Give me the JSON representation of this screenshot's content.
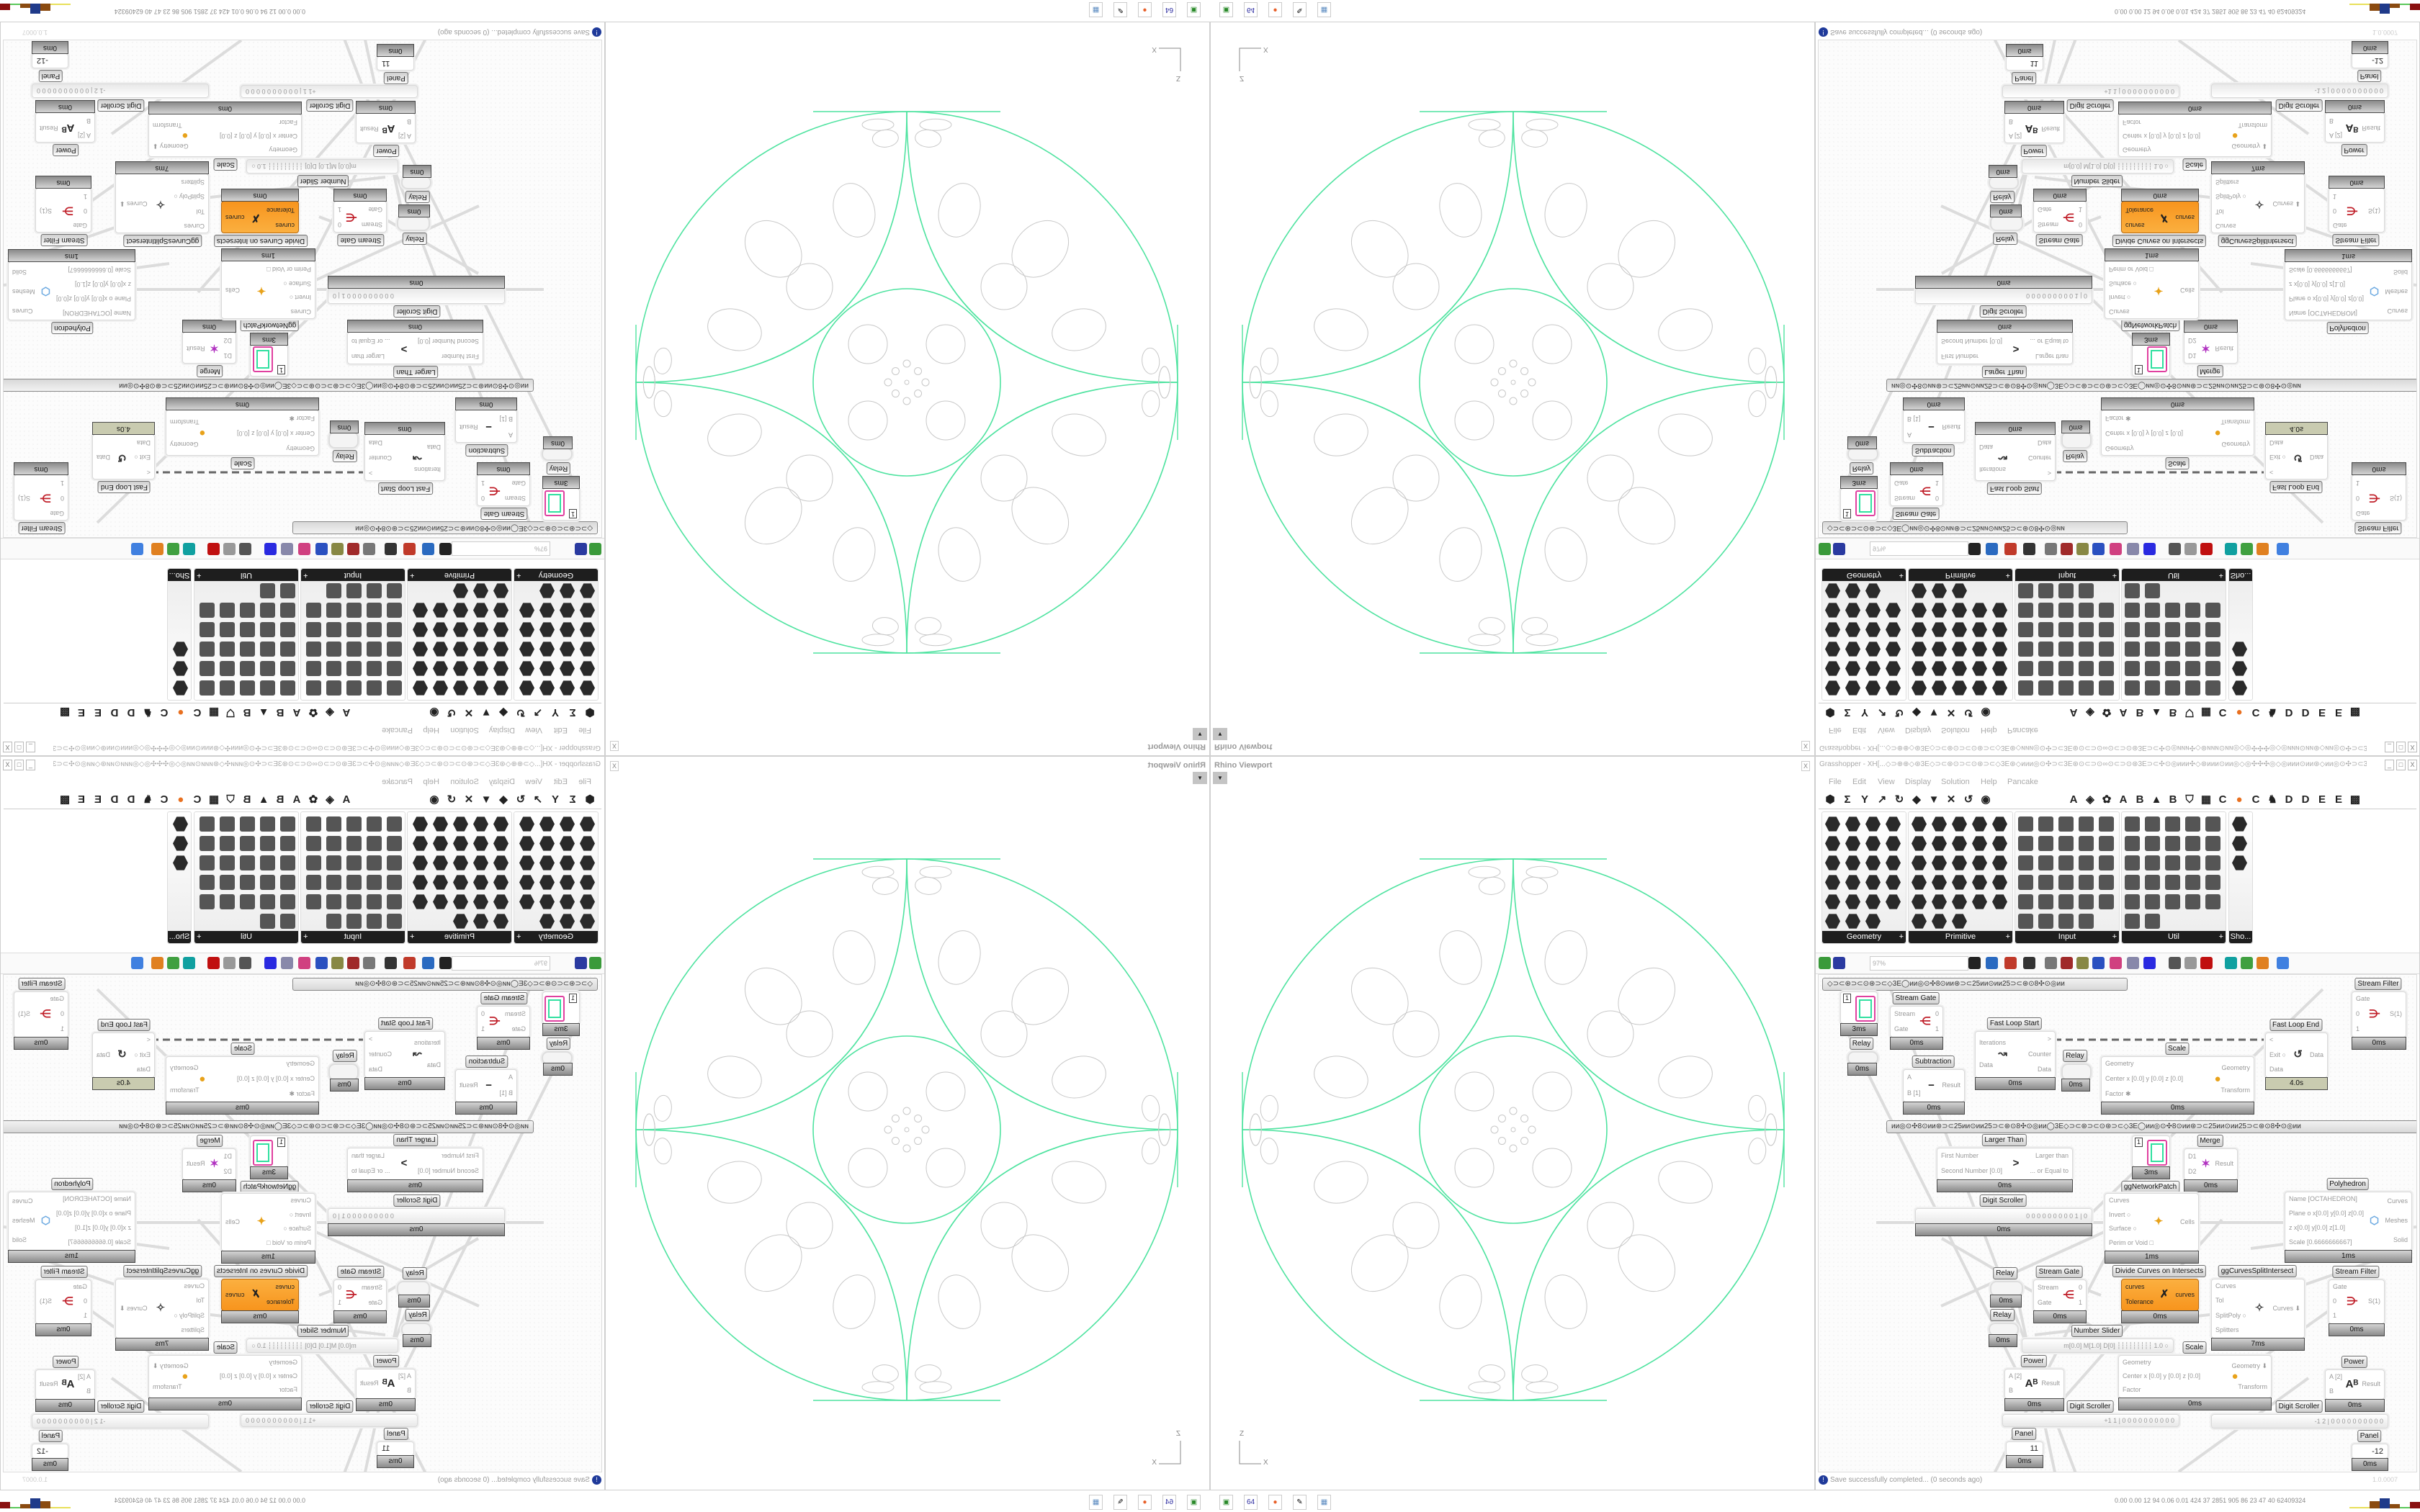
{
  "colors": {
    "curve_green": "#4fe3a0",
    "cell_grey": "#c8c8c8",
    "component_orange": "#f7941d",
    "status_blue": "#1f3a9a"
  },
  "viewport": {
    "title": "Rhino Viewport",
    "close": "X",
    "dropdown": "▼",
    "axis_z": "Z",
    "axis_x": "X"
  },
  "taskbar": {
    "icons": [
      {
        "name": "rhino-launcher-icon",
        "glyph": "▣",
        "color": "#2a8a2a"
      },
      {
        "name": "floppy-64-icon",
        "glyph": "64",
        "color": "#2a2aa0"
      },
      {
        "name": "firefox-icon",
        "glyph": "●",
        "color": "#e8602a"
      },
      {
        "name": "inkscape-icon",
        "glyph": "✎",
        "color": "#000000"
      },
      {
        "name": "calculator-icon",
        "glyph": "▦",
        "color": "#5a8ac0"
      }
    ],
    "stats": "0.00 0.00  12  94  0.06 0.01  424  37  2851 905  86  23  47  40  62409324",
    "bar_colors": [
      "#e8e05a",
      "#e8e05a",
      "#8a4a10",
      "#1f3a8a",
      "#8a4a10",
      "#5ac85a",
      "#8a1010"
    ]
  },
  "grasshopper": {
    "title": "Grasshopper - XH[...◇⊃⊕⊕◇⊛3E◇⊃⊂⊛⊙⊃⊂⊙⊛⊃⊂◇3E⊛◇ᴎᴎᴎ◎⊙✣⊃⊂3E⊛⊙⊂⊃⊙∞⊙⊂⊃⊙⊛3E⊃⊂✣⊙◎ᴎᴎᴎ✣◇⊛ᴎᴎᴎ⊙ᴎᴎ◎◇◎✣✣✣◎◇◎ᴎᴎᴎ⊙ᴎᴎ⊛◇ᴎᴎ◎⊙✣⊃⊂3E⊛⊙⊂⊃⊙∞⊙⊂...",
    "window_buttons": [
      "_",
      "□",
      "X"
    ],
    "menu": [
      "File",
      "Edit",
      "View",
      "Display",
      "Solution",
      "Help",
      "Pancake"
    ],
    "tabs": [
      {
        "name": "params-tab",
        "glyph": "⬢"
      },
      {
        "name": "maths-tab",
        "glyph": "Σ"
      },
      {
        "name": "sets-tab",
        "glyph": "Y"
      },
      {
        "name": "vector-tab",
        "glyph": "↗"
      },
      {
        "name": "curve-tab",
        "glyph": "↻"
      },
      {
        "name": "surface-tab",
        "glyph": "◆"
      },
      {
        "name": "mesh-tab",
        "glyph": "▼"
      },
      {
        "name": "intersect-tab",
        "glyph": "✕"
      },
      {
        "name": "transform-tab",
        "glyph": "↺"
      },
      {
        "name": "display-tab",
        "glyph": "◉"
      },
      {
        "name": "tab-a",
        "glyph": "A"
      },
      {
        "name": "leaf-tab",
        "glyph": "◈"
      },
      {
        "name": "brain-tab",
        "glyph": "✿"
      },
      {
        "name": "tab-a2",
        "glyph": "A"
      },
      {
        "name": "tab-b",
        "glyph": "B"
      },
      {
        "name": "mountain-tab",
        "glyph": "▲"
      },
      {
        "name": "tab-b2",
        "glyph": "B"
      },
      {
        "name": "shield-tab",
        "glyph": "⛉"
      },
      {
        "name": "grid-tab",
        "glyph": "▦"
      },
      {
        "name": "tab-c",
        "glyph": "C"
      },
      {
        "name": "orange-tab",
        "glyph": "●"
      },
      {
        "name": "tab-c2",
        "glyph": "C"
      },
      {
        "name": "chicken-tab",
        "glyph": "♞"
      },
      {
        "name": "tab-d",
        "glyph": "D"
      },
      {
        "name": "tab-d2",
        "glyph": "D"
      },
      {
        "name": "tab-e",
        "glyph": "E"
      },
      {
        "name": "tab-e2",
        "glyph": "E"
      },
      {
        "name": "pattern-tab",
        "glyph": "▩"
      }
    ],
    "panels": [
      {
        "label": "Geometry",
        "expand": "+",
        "icons": 23
      },
      {
        "label": "Primitive",
        "expand": "+",
        "icons": 28
      },
      {
        "label": "Input",
        "expand": "+",
        "icons": 29
      },
      {
        "label": "Util",
        "expand": "+",
        "icons": 27
      },
      {
        "label": "Sho...",
        "expand": "",
        "icons": 3
      }
    ],
    "toolbar_icons": [
      "new-file",
      "save",
      "zoom-extents",
      "preview-eye",
      "sketch-pen",
      "bug",
      "email",
      "gha",
      "viewer",
      "search-s",
      "help-box",
      "bulb",
      "wires",
      "sphere-preview",
      "mesh-preview",
      "render-red",
      "teal-shape",
      "green-shape",
      "orange-sphere",
      "blue-sphere"
    ],
    "zoom": "97%",
    "groups": [
      "◇⊃⊂⊛⊃⊂⊙⊛⊃⊂◇3E◯ᴎᴎ◎⊙✣8⊙ᴎᴎ⊛⊃⊂25ᴎᴎ⊙ᴎᴎ25⊃⊂⊛⊙8✣⊙◎ᴎᴎ",
      "ᴎᴎ◎⊙✣8⊙ᴎᴎ⊛⊃⊂25ᴎᴎ⊙ᴎᴎ25⊃⊂⊛⊙8✣⊙◎ᴎᴎ◯3E◇⊃⊂⊛⊃⊂⊙⊛⊃⊂◇3E◯ᴎᴎ◎⊙✣8⊙ᴎᴎ⊛⊃⊂25ᴎᴎ⊙ᴎᴎ25⊃⊂⊛⊙8✣⊙◎ᴎᴎ"
    ],
    "nodes": [
      {
        "type": "swatch",
        "label": "",
        "value": "1",
        "time": "3ms"
      },
      {
        "type": "relay",
        "label": "Relay",
        "time": "0ms"
      },
      {
        "type": "component",
        "label": "Stream Gate",
        "inputs": [
          "Stream",
          "Gate"
        ],
        "outputs": [
          "0",
          "1"
        ],
        "icon": "⋲",
        "icon_color": "#c0202a",
        "time": "0ms"
      },
      {
        "type": "component",
        "label": "Subtraction",
        "inputs": [
          "A",
          "B [1]"
        ],
        "outputs": [
          "Result"
        ],
        "icon": "−",
        "icon_color": "#222222",
        "time": "0ms"
      },
      {
        "type": "component",
        "label": "Fast Loop Start",
        "inputs": [
          "Iterations",
          "Data"
        ],
        "outputs": [
          ">",
          "Counter",
          "Data"
        ],
        "icon": "↝",
        "icon_color": "#333333",
        "time": "0ms"
      },
      {
        "type": "relay",
        "label": "Relay",
        "time": "0ms"
      },
      {
        "type": "component",
        "label": "Scale",
        "inputs": [
          "Geometry",
          "Center x [0.0] y [0.0] z [0.0]",
          "Factor ✱"
        ],
        "outputs": [
          "Geometry",
          "Transform"
        ],
        "icon": "●",
        "icon_color": "#e8a21a",
        "time": "0ms"
      },
      {
        "type": "component",
        "label": "Fast Loop End",
        "inputs": [
          "<",
          "Exit ○",
          "Data"
        ],
        "outputs": [
          "Data"
        ],
        "icon": "↺",
        "icon_color": "#333333",
        "time": "4.0s",
        "time_color": "#c9cbb0"
      },
      {
        "type": "component",
        "label": "Stream Filter",
        "inputs": [
          "Gate",
          "0",
          "1"
        ],
        "outputs": [
          "S(1)"
        ],
        "icon": "⋺",
        "icon_color": "#c0202a",
        "time": "0ms"
      },
      {
        "type": "component",
        "label": "Larger Than",
        "inputs": [
          "First Number",
          "Second Number [0.0]"
        ],
        "outputs": [
          "Larger than",
          "... or Equal to"
        ],
        "icon": ">",
        "icon_color": "#222222",
        "time": "0ms"
      },
      {
        "type": "scroller",
        "label": "Digit Scroller",
        "value": "0 0 0 0 0 0 0 0 0 1 | 0",
        "time": "0ms"
      },
      {
        "type": "swatch",
        "label": "ggNetworkPatch",
        "value": "1",
        "time": "3ms"
      },
      {
        "type": "component",
        "label": "Merge",
        "inputs": [
          "D1",
          "D2"
        ],
        "outputs": [
          "Result"
        ],
        "icon": "✶",
        "icon_color": "#b030c0",
        "time": "0ms"
      },
      {
        "type": "component",
        "label": "",
        "inputs": [
          "Curves",
          "Invert ○",
          "Surface ○",
          "Perim or Void □"
        ],
        "outputs": [
          "Cells"
        ],
        "icon": "✦",
        "icon_color": "#e8a21a",
        "time": "1ms"
      },
      {
        "type": "component",
        "label": "Polyhedron",
        "inputs": [
          "Name [OCTAHEDRON]",
          "Plane o x[0.0] y[0.0] z[0.0]",
          "z x[0.0] y[0.0] z[1.0]",
          "Scale [0.6666666667]"
        ],
        "outputs": [
          "Curves",
          "Meshes",
          "Solid"
        ],
        "icon": "⬡",
        "icon_color": "#6aa8e0",
        "time": "1ms"
      },
      {
        "type": "relay",
        "label": "Relay",
        "time": "0ms"
      },
      {
        "type": "relay",
        "label": "Relay",
        "time": "0ms"
      },
      {
        "type": "component",
        "label": "Stream Gate",
        "inputs": [
          "Stream",
          "Gate"
        ],
        "outputs": [
          "0",
          "1"
        ],
        "icon": "⋲",
        "icon_color": "#c0202a",
        "time": "0ms"
      },
      {
        "type": "component",
        "label": "Divide Curves on Intersects",
        "inputs": [
          "curves",
          "Tolerance"
        ],
        "outputs": [
          "curves"
        ],
        "icon": "✗",
        "icon_color": "#222222",
        "time": "0ms",
        "body_color": "#f7941d"
      },
      {
        "type": "component",
        "label": "ggCurvesSplitIntersect",
        "inputs": [
          "Curves",
          "Tol",
          "SplitPoly ○",
          "Splitters"
        ],
        "outputs": [
          "Curves ⬇"
        ],
        "icon": "✧",
        "icon_color": "#444444",
        "time": "7ms"
      },
      {
        "type": "component",
        "label": "Stream Filter",
        "inputs": [
          "Gate",
          "0",
          "1"
        ],
        "outputs": [
          "S(1)"
        ],
        "icon": "⋺",
        "icon_color": "#c0202a",
        "time": "0ms"
      },
      {
        "type": "slider",
        "label": "Number Slider",
        "value": "m[0.0] M[1.0] D[0]  ┆┆┆┆┆┆┆┆┆  1.0 ○"
      },
      {
        "type": "component",
        "label": "Scale",
        "inputs": [
          "Geometry",
          "Center x [0.0] y [0.0] z [0.0]",
          "Factor"
        ],
        "outputs": [
          "Geometry ⬇",
          "Transform"
        ],
        "icon": "●",
        "icon_color": "#e8a21a",
        "time": "0ms"
      },
      {
        "type": "component",
        "label": "Power",
        "inputs": [
          "A [2]",
          "B"
        ],
        "outputs": [
          "Result"
        ],
        "icon": "Aᴮ",
        "icon_color": "#222222",
        "time": "0ms"
      },
      {
        "type": "scroller",
        "label": "Digit Scroller",
        "value": "+1 1 | 0 0 0 0 0 0 0 0 0 0"
      },
      {
        "type": "component",
        "label": "Power",
        "inputs": [
          "A [2]",
          "B"
        ],
        "outputs": [
          "Result"
        ],
        "icon": "Aᴮ",
        "icon_color": "#222222",
        "time": "0ms"
      },
      {
        "type": "scroller",
        "label": "Digit Scroller",
        "value": "-1 2 | 0 0 0 0 0 0 0 0 0 0"
      },
      {
        "type": "panel",
        "label": "Panel",
        "value": "11",
        "time": "0ms"
      },
      {
        "type": "panel",
        "label": "Panel",
        "value": "-12",
        "time": "0ms"
      }
    ],
    "status": "Save successfully completed... (0 seconds ago)",
    "status_icon": "!",
    "version": "1.0.0007"
  }
}
